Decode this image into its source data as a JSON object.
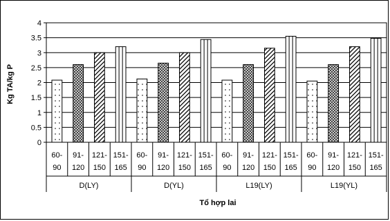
{
  "chart_data": {
    "type": "bar",
    "ylabel": "Kg TA/kg P",
    "xlabel": "Tổ hợp lai",
    "ylim": [
      0,
      4
    ],
    "yticks": [
      "0",
      "0.5",
      "1",
      "1.5",
      "2",
      "2.5",
      "3",
      "3.5",
      "4"
    ],
    "grid": true,
    "groups": [
      {
        "label": "D(LY)",
        "categories": [
          [
            "60-",
            "90"
          ],
          [
            "91-",
            "120"
          ],
          [
            "121-",
            "150"
          ],
          [
            "151-",
            "165"
          ]
        ],
        "values": [
          2.08,
          2.6,
          3.0,
          3.2
        ]
      },
      {
        "label": "D(YL)",
        "categories": [
          [
            "60-",
            "90"
          ],
          [
            "91-",
            "120"
          ],
          [
            "121-",
            "150"
          ],
          [
            "151-",
            "165"
          ]
        ],
        "values": [
          2.12,
          2.65,
          3.0,
          3.44
        ]
      },
      {
        "label": "L19(LY)",
        "categories": [
          [
            "60-",
            "90"
          ],
          [
            "91-",
            "120"
          ],
          [
            "121-",
            "150"
          ],
          [
            "151-",
            "165"
          ]
        ],
        "values": [
          2.08,
          2.6,
          3.15,
          3.55
        ]
      },
      {
        "label": "L19(YL)",
        "categories": [
          [
            "60-",
            "90"
          ],
          [
            "91-",
            "120"
          ],
          [
            "121-",
            "150"
          ],
          [
            "151-",
            "165"
          ]
        ],
        "values": [
          2.05,
          2.6,
          3.2,
          3.48
        ]
      }
    ],
    "bar_patterns": [
      "dots",
      "crosshatch",
      "diagonal",
      "vertical-double"
    ]
  }
}
